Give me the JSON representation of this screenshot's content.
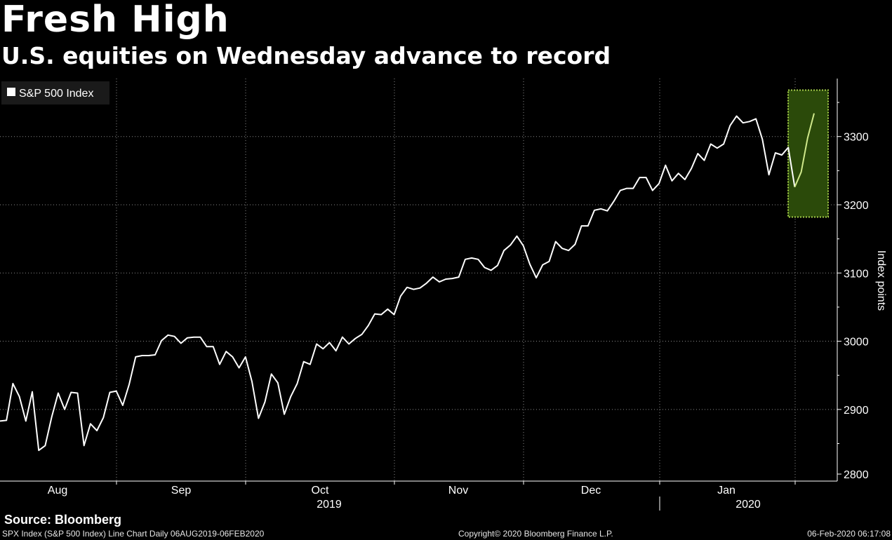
{
  "title": "Fresh High",
  "subtitle": "U.S. equities on Wednesday advance to record",
  "source": "Source: Bloomberg",
  "footer": {
    "left": "SPX Index (S&P 500 Index) Line Chart  Daily 06AUG2019-06FEB2020",
    "center": "Copyright© 2020 Bloomberg Finance L.P.",
    "right": "06-Feb-2020 06:17:08"
  },
  "colors": {
    "background": "#000000",
    "line": "#ffffff",
    "highlight_fill": "#2b4a0a",
    "highlight_border": "#a8d24a",
    "highlight_line": "#cfe88a"
  },
  "chart_data": {
    "type": "line",
    "series": [
      {
        "name": "S&P 500 Index",
        "values": [
          2883,
          2884,
          2938,
          2919,
          2883,
          2926,
          2840,
          2847,
          2889,
          2924,
          2900,
          2925,
          2924,
          2847,
          2879,
          2869,
          2888,
          2925,
          2927,
          2906,
          2937,
          2977,
          2979,
          2979,
          2980,
          3001,
          3009,
          3007,
          2997,
          3005,
          3006,
          3006,
          2992,
          2992,
          2966,
          2985,
          2977,
          2961,
          2977,
          2941,
          2887,
          2911,
          2952,
          2939,
          2893,
          2919,
          2938,
          2970,
          2966,
          2996,
          2989,
          2998,
          2986,
          3006,
          2996,
          3004,
          3010,
          3023,
          3040,
          3039,
          3047,
          3039,
          3066,
          3079,
          3076,
          3078,
          3085,
          3094,
          3087,
          3091,
          3092,
          3094,
          3120,
          3122,
          3120,
          3108,
          3104,
          3111,
          3133,
          3141,
          3154,
          3140,
          3113,
          3093,
          3112,
          3117,
          3146,
          3136,
          3133,
          3142,
          3169,
          3169,
          3192,
          3194,
          3191,
          3205,
          3221,
          3224,
          3224,
          3240,
          3240,
          3221,
          3231,
          3258,
          3235,
          3246,
          3237,
          3253,
          3275,
          3265,
          3289,
          3283,
          3289,
          3316,
          3330,
          3320,
          3322,
          3326,
          3296,
          3244,
          3276,
          3273,
          3284,
          3226,
          3248,
          3298,
          3334
        ]
      }
    ],
    "highlight_from_index": 123,
    "legend": "S&P 500 Index",
    "legend_position": "top-left",
    "ylabel": "Index points",
    "ylim": [
      2795,
      3385
    ],
    "yticks": [
      2800,
      2900,
      3000,
      3100,
      3200,
      3300
    ],
    "x_month_labels": [
      "Aug",
      "Sep",
      "Oct",
      "Nov",
      "Dec",
      "Jan"
    ],
    "x_year_labels": [
      "2019",
      "2020"
    ],
    "grid": true,
    "highlight_box": {
      "ymin": 3182,
      "ymax": 3368
    }
  }
}
